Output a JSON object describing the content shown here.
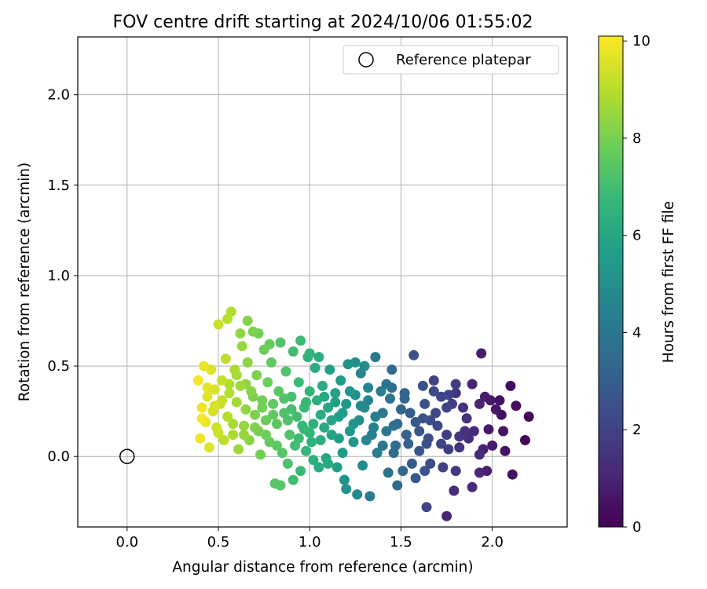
{
  "chart_data": {
    "type": "scatter",
    "title": "FOV centre drift starting at 2024/10/06 01:55:02",
    "xlabel": "Angular distance from reference (arcmin)",
    "ylabel": "Rotation from reference (arcmin)",
    "xlim": [
      -0.27,
      2.41
    ],
    "ylim": [
      -0.39,
      2.32
    ],
    "xticks": [
      0.0,
      0.5,
      1.0,
      1.5,
      2.0
    ],
    "xtick_labels": [
      "0.0",
      "0.5",
      "1.0",
      "1.5",
      "2.0"
    ],
    "yticks": [
      0.0,
      0.5,
      1.0,
      1.5,
      2.0
    ],
    "ytick_labels": [
      "0.0",
      "0.5",
      "1.0",
      "1.5",
      "2.0"
    ],
    "grid": true,
    "legend": {
      "position": "top-right",
      "entries": [
        "Reference platepar"
      ]
    },
    "reference_point": {
      "name": "Reference platepar",
      "x": 0.0,
      "y": 0.0,
      "marker": "open-circle",
      "color": "#000000"
    },
    "colorbar": {
      "label": "Hours from first FF file",
      "range": [
        0,
        10.1
      ],
      "ticks": [
        0,
        2,
        4,
        6,
        8,
        10
      ],
      "tick_labels": [
        "0",
        "2",
        "4",
        "6",
        "8",
        "10"
      ],
      "colormap": "viridis",
      "stops": [
        "#440154",
        "#482878",
        "#3e4989",
        "#31688e",
        "#26828e",
        "#1f9e89",
        "#35b779",
        "#6ece58",
        "#b5de2b",
        "#fde725"
      ]
    },
    "series": [
      {
        "marker": "filled-circle",
        "color_by": "hours",
        "points": [
          [
            2.2,
            0.22,
            0.1
          ],
          [
            2.18,
            0.09,
            0.2
          ],
          [
            2.13,
            0.28,
            0.3
          ],
          [
            2.1,
            0.39,
            0.3
          ],
          [
            2.11,
            -0.1,
            0.4
          ],
          [
            2.07,
            0.03,
            0.5
          ],
          [
            2.05,
            0.23,
            0.4
          ],
          [
            2.04,
            0.31,
            0.5
          ],
          [
            2.0,
            0.06,
            0.7
          ],
          [
            1.99,
            0.31,
            0.6
          ],
          [
            1.96,
            0.33,
            0.8
          ],
          [
            1.94,
            0.57,
            0.8
          ],
          [
            1.93,
            0.29,
            1.0
          ],
          [
            1.97,
            -0.08,
            0.9
          ],
          [
            1.93,
            -0.09,
            1.1
          ],
          [
            1.93,
            0.01,
            1.2
          ],
          [
            1.89,
            0.4,
            1.0
          ],
          [
            1.89,
            -0.17,
            1.2
          ],
          [
            1.9,
            0.14,
            1.3
          ],
          [
            1.87,
            0.1,
            1.4
          ],
          [
            1.85,
            0.14,
            1.5
          ],
          [
            1.82,
            0.11,
            1.6
          ],
          [
            1.8,
            0.35,
            1.6
          ],
          [
            1.8,
            0.4,
            1.8
          ],
          [
            1.79,
            -0.19,
            1.3
          ],
          [
            1.8,
            -0.08,
            1.7
          ],
          [
            1.78,
            0.29,
            1.8
          ],
          [
            1.76,
            0.34,
            2.0
          ],
          [
            1.75,
            -0.33,
            1.1
          ],
          [
            1.75,
            0.27,
            2.0
          ],
          [
            1.75,
            0.12,
            1.9
          ],
          [
            1.73,
            -0.06,
            2.0
          ],
          [
            1.72,
            0.07,
            2.1
          ],
          [
            1.69,
            0.24,
            2.2
          ],
          [
            1.68,
            0.36,
            2.2
          ],
          [
            1.68,
            0.42,
            2.0
          ],
          [
            1.66,
            0.2,
            2.3
          ],
          [
            1.65,
            0.1,
            2.4
          ],
          [
            1.64,
            -0.28,
            2.1
          ],
          [
            1.64,
            0.07,
            2.5
          ],
          [
            1.63,
            -0.08,
            2.6
          ],
          [
            1.63,
            0.29,
            2.5
          ],
          [
            1.62,
            0.21,
            2.6
          ],
          [
            1.6,
            0.03,
            2.7
          ],
          [
            1.58,
            0.19,
            2.8
          ],
          [
            1.56,
            -0.04,
            2.9
          ],
          [
            1.57,
            0.56,
            2.6
          ],
          [
            1.55,
            0.24,
            3.0
          ],
          [
            1.53,
            0.12,
            3.1
          ],
          [
            1.52,
            0.32,
            3.3
          ],
          [
            1.51,
            -0.08,
            3.4
          ],
          [
            1.5,
            0.26,
            3.3
          ],
          [
            1.48,
            -0.16,
            3.5
          ],
          [
            1.47,
            0.06,
            3.6
          ],
          [
            1.46,
            0.17,
            3.7
          ],
          [
            1.45,
            0.48,
            3.5
          ],
          [
            1.44,
            0.32,
            3.8
          ],
          [
            1.43,
            -0.09,
            3.9
          ],
          [
            1.42,
            0.14,
            4.0
          ],
          [
            1.4,
            0.24,
            4.0
          ],
          [
            1.39,
            0.36,
            4.2
          ],
          [
            1.37,
            0.02,
            4.3
          ],
          [
            1.36,
            0.55,
            4.1
          ],
          [
            1.35,
            0.16,
            4.5
          ],
          [
            1.33,
            -0.22,
            4.2
          ],
          [
            1.32,
            0.38,
            4.6
          ],
          [
            1.31,
            0.09,
            4.7
          ],
          [
            1.3,
            0.27,
            4.8
          ],
          [
            1.29,
            -0.05,
            4.9
          ],
          [
            1.28,
            0.46,
            4.6
          ],
          [
            1.27,
            0.2,
            5.0
          ],
          [
            1.26,
            -0.21,
            4.8
          ],
          [
            1.25,
            0.34,
            5.1
          ],
          [
            1.24,
            0.08,
            5.2
          ],
          [
            1.22,
            0.14,
            5.3
          ],
          [
            1.21,
            0.51,
            5.1
          ],
          [
            1.2,
            0.29,
            5.4
          ],
          [
            1.19,
            -0.13,
            5.2
          ],
          [
            1.18,
            0.02,
            5.5
          ],
          [
            1.17,
            0.42,
            5.5
          ],
          [
            1.16,
            0.22,
            5.6
          ],
          [
            1.15,
            -0.06,
            5.7
          ],
          [
            1.14,
            0.35,
            5.8
          ],
          [
            1.12,
            0.12,
            5.9
          ],
          [
            1.11,
            0.48,
            5.7
          ],
          [
            1.1,
            0.27,
            6.0
          ],
          [
            1.09,
            -0.01,
            6.0
          ],
          [
            1.08,
            0.16,
            6.1
          ],
          [
            1.07,
            0.39,
            6.2
          ],
          [
            1.06,
            0.23,
            6.3
          ],
          [
            1.05,
            -0.06,
            6.2
          ],
          [
            1.04,
            0.31,
            6.4
          ],
          [
            1.03,
            0.49,
            6.3
          ],
          [
            1.02,
            0.18,
            6.5
          ],
          [
            1.01,
            0.08,
            6.5
          ],
          [
            1.0,
            0.36,
            6.6
          ],
          [
            0.99,
            0.55,
            6.5
          ],
          [
            0.98,
            0.03,
            6.7
          ],
          [
            0.97,
            0.27,
            6.8
          ],
          [
            0.96,
            0.17,
            6.8
          ],
          [
            0.95,
            -0.08,
            6.8
          ],
          [
            0.94,
            0.41,
            6.9
          ],
          [
            0.93,
            0.22,
            7.0
          ],
          [
            0.92,
            0.06,
            7.0
          ],
          [
            0.91,
            0.58,
            7.0
          ],
          [
            0.9,
            0.33,
            7.1
          ],
          [
            0.89,
            0.12,
            7.2
          ],
          [
            0.88,
            -0.04,
            7.2
          ],
          [
            0.87,
            0.47,
            7.3
          ],
          [
            0.86,
            0.24,
            7.3
          ],
          [
            0.85,
            0.02,
            7.4
          ],
          [
            0.84,
            0.63,
            7.3
          ],
          [
            0.83,
            0.36,
            7.5
          ],
          [
            0.82,
            0.18,
            7.5
          ],
          [
            0.81,
            -0.15,
            7.4
          ],
          [
            0.8,
            0.29,
            7.6
          ],
          [
            0.79,
            0.52,
            7.6
          ],
          [
            0.78,
            0.08,
            7.7
          ],
          [
            0.77,
            0.41,
            7.8
          ],
          [
            0.76,
            0.2,
            7.8
          ],
          [
            0.75,
            0.59,
            7.8
          ],
          [
            0.74,
            0.31,
            7.9
          ],
          [
            0.73,
            0.01,
            7.9
          ],
          [
            0.72,
            0.14,
            8.0
          ],
          [
            0.71,
            0.45,
            8.1
          ],
          [
            0.7,
            0.23,
            8.1
          ],
          [
            0.69,
            0.69,
            8.1
          ],
          [
            0.68,
            0.36,
            8.2
          ],
          [
            0.67,
            0.09,
            8.3
          ],
          [
            0.66,
            0.52,
            8.3
          ],
          [
            0.65,
            0.26,
            8.4
          ],
          [
            0.64,
            0.17,
            8.5
          ],
          [
            0.63,
            0.61,
            8.5
          ],
          [
            0.62,
            0.39,
            8.6
          ],
          [
            0.61,
            0.04,
            8.6
          ],
          [
            0.6,
            0.3,
            8.7
          ],
          [
            0.59,
            0.48,
            8.8
          ],
          [
            0.58,
            0.12,
            8.8
          ],
          [
            0.57,
            0.8,
            8.9
          ],
          [
            0.56,
            0.35,
            8.9
          ],
          [
            0.55,
            0.22,
            9.0
          ],
          [
            0.54,
            0.54,
            9.1
          ],
          [
            0.53,
            0.09,
            9.1
          ],
          [
            0.52,
            0.42,
            9.2
          ],
          [
            0.51,
            0.29,
            9.3
          ],
          [
            0.5,
            0.73,
            9.3
          ],
          [
            0.49,
            0.16,
            9.4
          ],
          [
            0.48,
            0.37,
            9.5
          ],
          [
            0.47,
            0.25,
            9.5
          ],
          [
            0.46,
            0.48,
            9.6
          ],
          [
            0.45,
            0.05,
            9.6
          ],
          [
            0.44,
            0.33,
            9.7
          ],
          [
            0.43,
            0.19,
            9.8
          ],
          [
            0.42,
            0.5,
            9.8
          ],
          [
            0.41,
            0.27,
            9.9
          ],
          [
            0.4,
            0.1,
            9.9
          ],
          [
            0.39,
            0.42,
            10.0
          ],
          [
            0.41,
            0.21,
            10.0
          ],
          [
            0.55,
            0.76,
            9.0
          ],
          [
            0.62,
            0.68,
            8.4
          ],
          [
            0.66,
            0.75,
            8.2
          ],
          [
            0.72,
            0.68,
            7.9
          ],
          [
            0.78,
            0.62,
            7.7
          ],
          [
            0.95,
            0.64,
            6.9
          ],
          [
            1.0,
            0.57,
            6.6
          ],
          [
            1.05,
            0.55,
            6.3
          ],
          [
            1.25,
            0.52,
            5.1
          ],
          [
            1.3,
            0.5,
            4.9
          ],
          [
            1.45,
            0.38,
            3.6
          ],
          [
            1.52,
            0.35,
            3.2
          ],
          [
            1.2,
            -0.18,
            5.2
          ],
          [
            1.1,
            -0.04,
            6.1
          ],
          [
            1.02,
            -0.02,
            6.4
          ],
          [
            0.91,
            -0.13,
            7.0
          ],
          [
            0.84,
            -0.16,
            7.4
          ],
          [
            0.97,
            0.15,
            6.8
          ],
          [
            1.12,
            0.2,
            5.9
          ],
          [
            1.18,
            0.24,
            5.5
          ],
          [
            1.28,
            0.28,
            4.8
          ],
          [
            1.36,
            0.22,
            4.3
          ],
          [
            1.48,
            0.18,
            3.5
          ],
          [
            1.6,
            0.14,
            2.7
          ],
          [
            1.7,
            0.17,
            2.2
          ],
          [
            1.82,
            0.05,
            1.6
          ],
          [
            1.95,
            0.04,
            0.9
          ],
          [
            2.02,
            0.26,
            0.6
          ],
          [
            1.84,
            0.27,
            1.5
          ],
          [
            1.72,
            0.33,
            2.1
          ],
          [
            1.62,
            0.39,
            2.6
          ],
          [
            1.42,
            0.4,
            3.9
          ],
          [
            1.32,
            0.31,
            4.6
          ],
          [
            1.22,
            0.36,
            5.3
          ],
          [
            1.14,
            0.3,
            5.7
          ],
          [
            1.08,
            0.33,
            6.1
          ],
          [
            0.98,
            0.3,
            6.7
          ],
          [
            0.9,
            0.26,
            7.1
          ],
          [
            0.86,
            0.32,
            7.3
          ],
          [
            0.8,
            0.23,
            7.6
          ],
          [
            0.74,
            0.27,
            7.9
          ],
          [
            0.69,
            0.33,
            8.1
          ],
          [
            0.65,
            0.4,
            8.4
          ],
          [
            0.6,
            0.45,
            8.7
          ],
          [
            0.56,
            0.4,
            8.9
          ],
          [
            0.52,
            0.31,
            9.2
          ],
          [
            0.48,
            0.28,
            9.5
          ],
          [
            0.44,
            0.38,
            9.7
          ],
          [
            0.5,
            0.13,
            9.3
          ],
          [
            0.58,
            0.18,
            8.8
          ],
          [
            0.64,
            0.12,
            8.5
          ],
          [
            0.7,
            0.16,
            8.1
          ],
          [
            0.76,
            0.12,
            7.8
          ],
          [
            0.82,
            0.06,
            7.5
          ],
          [
            0.88,
            0.2,
            7.2
          ],
          [
            0.94,
            0.1,
            6.9
          ],
          [
            1.0,
            0.13,
            6.6
          ],
          [
            1.06,
            0.09,
            6.3
          ],
          [
            1.16,
            0.1,
            5.6
          ],
          [
            1.24,
            0.18,
            5.2
          ],
          [
            1.34,
            0.12,
            4.5
          ],
          [
            1.4,
            0.06,
            4.0
          ],
          [
            1.46,
            0.02,
            3.6
          ],
          [
            1.54,
            0.07,
            3.1
          ],
          [
            1.58,
            -0.12,
            2.8
          ],
          [
            1.66,
            -0.04,
            2.4
          ],
          [
            1.76,
            0.04,
            1.9
          ],
          [
            1.86,
            0.21,
            1.4
          ],
          [
            1.98,
            0.15,
            0.7
          ],
          [
            2.06,
            0.14,
            0.5
          ]
        ]
      }
    ]
  }
}
